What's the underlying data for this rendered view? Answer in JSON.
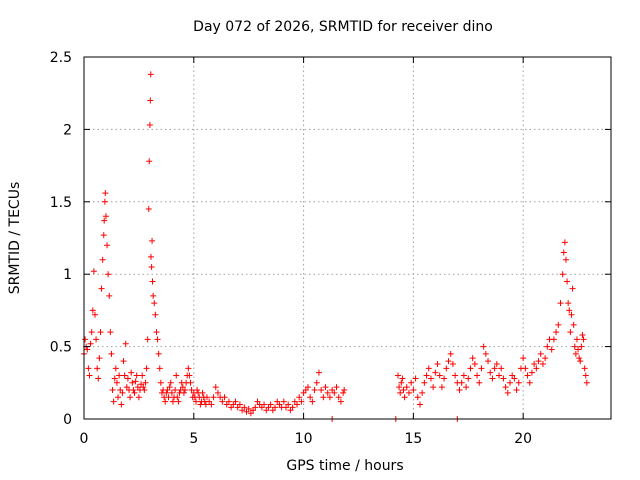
{
  "chart_data": {
    "type": "scatter",
    "title": "Day 072 of 2026, SRMTID for receiver dino",
    "xlabel": "GPS time / hours",
    "ylabel": "SRMTID / TECUs",
    "xlim": [
      0,
      24
    ],
    "ylim": [
      0,
      2.5
    ],
    "xticks": [
      0,
      5,
      10,
      15,
      20
    ],
    "yticks": [
      0,
      0.5,
      1,
      1.5,
      2,
      2.5
    ],
    "grid": true,
    "marker": "+",
    "series": [
      {
        "name": "SRMTID",
        "color": "#ff0000",
        "points": [
          [
            0.0,
            0.45
          ],
          [
            0.05,
            0.55
          ],
          [
            0.1,
            0.5
          ],
          [
            0.15,
            0.48
          ],
          [
            0.2,
            0.35
          ],
          [
            0.25,
            0.3
          ],
          [
            0.3,
            0.52
          ],
          [
            0.35,
            0.6
          ],
          [
            0.4,
            0.75
          ],
          [
            0.45,
            1.02
          ],
          [
            0.5,
            0.72
          ],
          [
            0.55,
            0.55
          ],
          [
            0.6,
            0.35
          ],
          [
            0.65,
            0.28
          ],
          [
            0.7,
            0.42
          ],
          [
            0.75,
            0.6
          ],
          [
            0.8,
            0.9
          ],
          [
            0.85,
            1.1
          ],
          [
            0.9,
            1.27
          ],
          [
            0.92,
            1.37
          ],
          [
            0.95,
            1.5
          ],
          [
            0.97,
            1.56
          ],
          [
            1.0,
            1.4
          ],
          [
            1.05,
            1.2
          ],
          [
            1.1,
            1.0
          ],
          [
            1.15,
            0.85
          ],
          [
            1.2,
            0.6
          ],
          [
            1.25,
            0.45
          ],
          [
            1.3,
            0.2
          ],
          [
            1.35,
            0.12
          ],
          [
            1.4,
            0.28
          ],
          [
            1.45,
            0.35
          ],
          [
            1.5,
            0.25
          ],
          [
            1.55,
            0.15
          ],
          [
            1.6,
            0.3
          ],
          [
            1.65,
            0.2
          ],
          [
            1.7,
            0.1
          ],
          [
            1.75,
            0.18
          ],
          [
            1.8,
            0.4
          ],
          [
            1.85,
            0.3
          ],
          [
            1.9,
            0.52
          ],
          [
            1.95,
            0.22
          ],
          [
            2.0,
            0.28
          ],
          [
            2.05,
            0.2
          ],
          [
            2.1,
            0.15
          ],
          [
            2.15,
            0.32
          ],
          [
            2.2,
            0.25
          ],
          [
            2.25,
            0.2
          ],
          [
            2.3,
            0.18
          ],
          [
            2.35,
            0.26
          ],
          [
            2.4,
            0.3
          ],
          [
            2.45,
            0.22
          ],
          [
            2.5,
            0.15
          ],
          [
            2.55,
            0.2
          ],
          [
            2.6,
            0.24
          ],
          [
            2.65,
            0.3
          ],
          [
            2.7,
            0.22
          ],
          [
            2.75,
            0.2
          ],
          [
            2.8,
            0.25
          ],
          [
            2.85,
            0.35
          ],
          [
            2.9,
            0.55
          ],
          [
            2.95,
            1.45
          ],
          [
            2.97,
            1.78
          ],
          [
            3.0,
            2.03
          ],
          [
            3.02,
            2.2
          ],
          [
            3.04,
            2.38
          ],
          [
            3.05,
            1.12
          ],
          [
            3.08,
            1.05
          ],
          [
            3.1,
            1.23
          ],
          [
            3.12,
            0.95
          ],
          [
            3.15,
            0.85
          ],
          [
            3.2,
            0.8
          ],
          [
            3.25,
            0.72
          ],
          [
            3.3,
            0.6
          ],
          [
            3.35,
            0.55
          ],
          [
            3.4,
            0.45
          ],
          [
            3.45,
            0.35
          ],
          [
            3.5,
            0.25
          ],
          [
            3.55,
            0.18
          ],
          [
            3.6,
            0.2
          ],
          [
            3.65,
            0.15
          ],
          [
            3.7,
            0.12
          ],
          [
            3.75,
            0.18
          ],
          [
            3.8,
            0.2
          ],
          [
            3.85,
            0.15
          ],
          [
            3.9,
            0.22
          ],
          [
            3.95,
            0.25
          ],
          [
            4.0,
            0.18
          ],
          [
            4.05,
            0.12
          ],
          [
            4.1,
            0.15
          ],
          [
            4.15,
            0.2
          ],
          [
            4.2,
            0.3
          ],
          [
            4.25,
            0.15
          ],
          [
            4.3,
            0.12
          ],
          [
            4.35,
            0.18
          ],
          [
            4.4,
            0.2
          ],
          [
            4.45,
            0.25
          ],
          [
            4.5,
            0.22
          ],
          [
            4.55,
            0.18
          ],
          [
            4.6,
            0.2
          ],
          [
            4.65,
            0.25
          ],
          [
            4.7,
            0.3
          ],
          [
            4.75,
            0.35
          ],
          [
            4.8,
            0.3
          ],
          [
            4.85,
            0.25
          ],
          [
            4.9,
            0.2
          ],
          [
            4.95,
            0.15
          ],
          [
            5.0,
            0.18
          ],
          [
            5.05,
            0.15
          ],
          [
            5.1,
            0.12
          ],
          [
            5.15,
            0.2
          ],
          [
            5.2,
            0.18
          ],
          [
            5.25,
            0.15
          ],
          [
            5.3,
            0.1
          ],
          [
            5.35,
            0.12
          ],
          [
            5.4,
            0.18
          ],
          [
            5.45,
            0.15
          ],
          [
            5.5,
            0.12
          ],
          [
            5.55,
            0.1
          ],
          [
            5.6,
            0.15
          ],
          [
            5.7,
            0.12
          ],
          [
            5.8,
            0.1
          ],
          [
            5.9,
            0.15
          ],
          [
            6.0,
            0.22
          ],
          [
            6.1,
            0.18
          ],
          [
            6.2,
            0.15
          ],
          [
            6.3,
            0.12
          ],
          [
            6.4,
            0.15
          ],
          [
            6.5,
            0.1
          ],
          [
            6.6,
            0.12
          ],
          [
            6.7,
            0.08
          ],
          [
            6.8,
            0.1
          ],
          [
            6.9,
            0.12
          ],
          [
            7.0,
            0.08
          ],
          [
            7.1,
            0.1
          ],
          [
            7.2,
            0.06
          ],
          [
            7.3,
            0.08
          ],
          [
            7.4,
            0.05
          ],
          [
            7.5,
            0.07
          ],
          [
            7.6,
            0.04
          ],
          [
            7.7,
            0.06
          ],
          [
            7.8,
            0.08
          ],
          [
            7.9,
            0.12
          ],
          [
            8.0,
            0.1
          ],
          [
            8.1,
            0.08
          ],
          [
            8.2,
            0.1
          ],
          [
            8.3,
            0.06
          ],
          [
            8.4,
            0.08
          ],
          [
            8.5,
            0.1
          ],
          [
            8.6,
            0.06
          ],
          [
            8.7,
            0.08
          ],
          [
            8.8,
            0.12
          ],
          [
            8.9,
            0.1
          ],
          [
            9.0,
            0.08
          ],
          [
            9.1,
            0.12
          ],
          [
            9.2,
            0.08
          ],
          [
            9.3,
            0.1
          ],
          [
            9.4,
            0.06
          ],
          [
            9.5,
            0.08
          ],
          [
            9.6,
            0.12
          ],
          [
            9.7,
            0.1
          ],
          [
            9.8,
            0.15
          ],
          [
            9.9,
            0.12
          ],
          [
            10.0,
            0.18
          ],
          [
            10.1,
            0.2
          ],
          [
            10.2,
            0.22
          ],
          [
            10.3,
            0.15
          ],
          [
            10.4,
            0.12
          ],
          [
            10.5,
            0.2
          ],
          [
            10.6,
            0.25
          ],
          [
            10.7,
            0.32
          ],
          [
            10.8,
            0.2
          ],
          [
            10.9,
            0.15
          ],
          [
            11.0,
            0.22
          ],
          [
            11.1,
            0.18
          ],
          [
            11.2,
            0.15
          ],
          [
            11.3,
            0.2
          ],
          [
            11.4,
            0.18
          ],
          [
            11.5,
            0.22
          ],
          [
            11.6,
            0.15
          ],
          [
            11.7,
            0.12
          ],
          [
            11.8,
            0.18
          ],
          [
            11.85,
            0.2
          ],
          [
            11.3,
            0.0
          ],
          [
            14.2,
            0.0
          ],
          [
            14.3,
            0.3
          ],
          [
            14.35,
            0.22
          ],
          [
            14.4,
            0.18
          ],
          [
            14.45,
            0.25
          ],
          [
            14.5,
            0.28
          ],
          [
            14.55,
            0.2
          ],
          [
            14.6,
            0.15
          ],
          [
            14.7,
            0.22
          ],
          [
            14.8,
            0.18
          ],
          [
            14.9,
            0.25
          ],
          [
            15.0,
            0.2
          ],
          [
            15.1,
            0.28
          ],
          [
            15.2,
            0.15
          ],
          [
            15.3,
            0.1
          ],
          [
            15.4,
            0.18
          ],
          [
            15.5,
            0.25
          ],
          [
            15.6,
            0.3
          ],
          [
            15.7,
            0.35
          ],
          [
            15.8,
            0.28
          ],
          [
            15.9,
            0.22
          ],
          [
            16.0,
            0.32
          ],
          [
            16.1,
            0.38
          ],
          [
            16.2,
            0.3
          ],
          [
            16.3,
            0.22
          ],
          [
            16.4,
            0.28
          ],
          [
            16.5,
            0.35
          ],
          [
            16.6,
            0.4
          ],
          [
            16.7,
            0.45
          ],
          [
            16.8,
            0.38
          ],
          [
            16.9,
            0.3
          ],
          [
            17.0,
            0.25
          ],
          [
            17.0,
            0.0
          ],
          [
            17.1,
            0.2
          ],
          [
            17.2,
            0.25
          ],
          [
            17.3,
            0.3
          ],
          [
            17.4,
            0.22
          ],
          [
            17.5,
            0.28
          ],
          [
            17.6,
            0.35
          ],
          [
            17.7,
            0.42
          ],
          [
            17.8,
            0.38
          ],
          [
            17.9,
            0.3
          ],
          [
            18.0,
            0.25
          ],
          [
            18.1,
            0.35
          ],
          [
            18.2,
            0.5
          ],
          [
            18.3,
            0.45
          ],
          [
            18.4,
            0.4
          ],
          [
            18.5,
            0.32
          ],
          [
            18.6,
            0.28
          ],
          [
            18.7,
            0.35
          ],
          [
            18.8,
            0.38
          ],
          [
            18.9,
            0.3
          ],
          [
            19.0,
            0.35
          ],
          [
            19.1,
            0.28
          ],
          [
            19.2,
            0.22
          ],
          [
            19.3,
            0.18
          ],
          [
            19.4,
            0.25
          ],
          [
            19.5,
            0.3
          ],
          [
            19.6,
            0.28
          ],
          [
            19.7,
            0.2
          ],
          [
            19.8,
            0.25
          ],
          [
            19.9,
            0.35
          ],
          [
            20.0,
            0.42
          ],
          [
            20.1,
            0.35
          ],
          [
            20.2,
            0.3
          ],
          [
            20.3,
            0.25
          ],
          [
            20.4,
            0.32
          ],
          [
            20.5,
            0.38
          ],
          [
            20.6,
            0.35
          ],
          [
            20.7,
            0.4
          ],
          [
            20.8,
            0.45
          ],
          [
            20.9,
            0.38
          ],
          [
            21.0,
            0.42
          ],
          [
            21.1,
            0.5
          ],
          [
            21.2,
            0.55
          ],
          [
            21.3,
            0.48
          ],
          [
            21.4,
            0.55
          ],
          [
            21.5,
            0.6
          ],
          [
            21.6,
            0.65
          ],
          [
            21.7,
            0.8
          ],
          [
            21.8,
            1.0
          ],
          [
            21.85,
            1.15
          ],
          [
            21.9,
            1.22
          ],
          [
            21.95,
            1.1
          ],
          [
            22.0,
            0.95
          ],
          [
            22.05,
            0.8
          ],
          [
            22.1,
            0.75
          ],
          [
            22.15,
            0.6
          ],
          [
            22.2,
            0.72
          ],
          [
            22.25,
            0.9
          ],
          [
            22.3,
            0.65
          ],
          [
            22.35,
            0.5
          ],
          [
            22.4,
            0.45
          ],
          [
            22.45,
            0.55
          ],
          [
            22.5,
            0.48
          ],
          [
            22.55,
            0.42
          ],
          [
            22.6,
            0.4
          ],
          [
            22.65,
            0.5
          ],
          [
            22.7,
            0.58
          ],
          [
            22.75,
            0.55
          ],
          [
            22.8,
            0.35
          ],
          [
            22.85,
            0.3
          ],
          [
            22.9,
            0.25
          ]
        ]
      }
    ]
  }
}
